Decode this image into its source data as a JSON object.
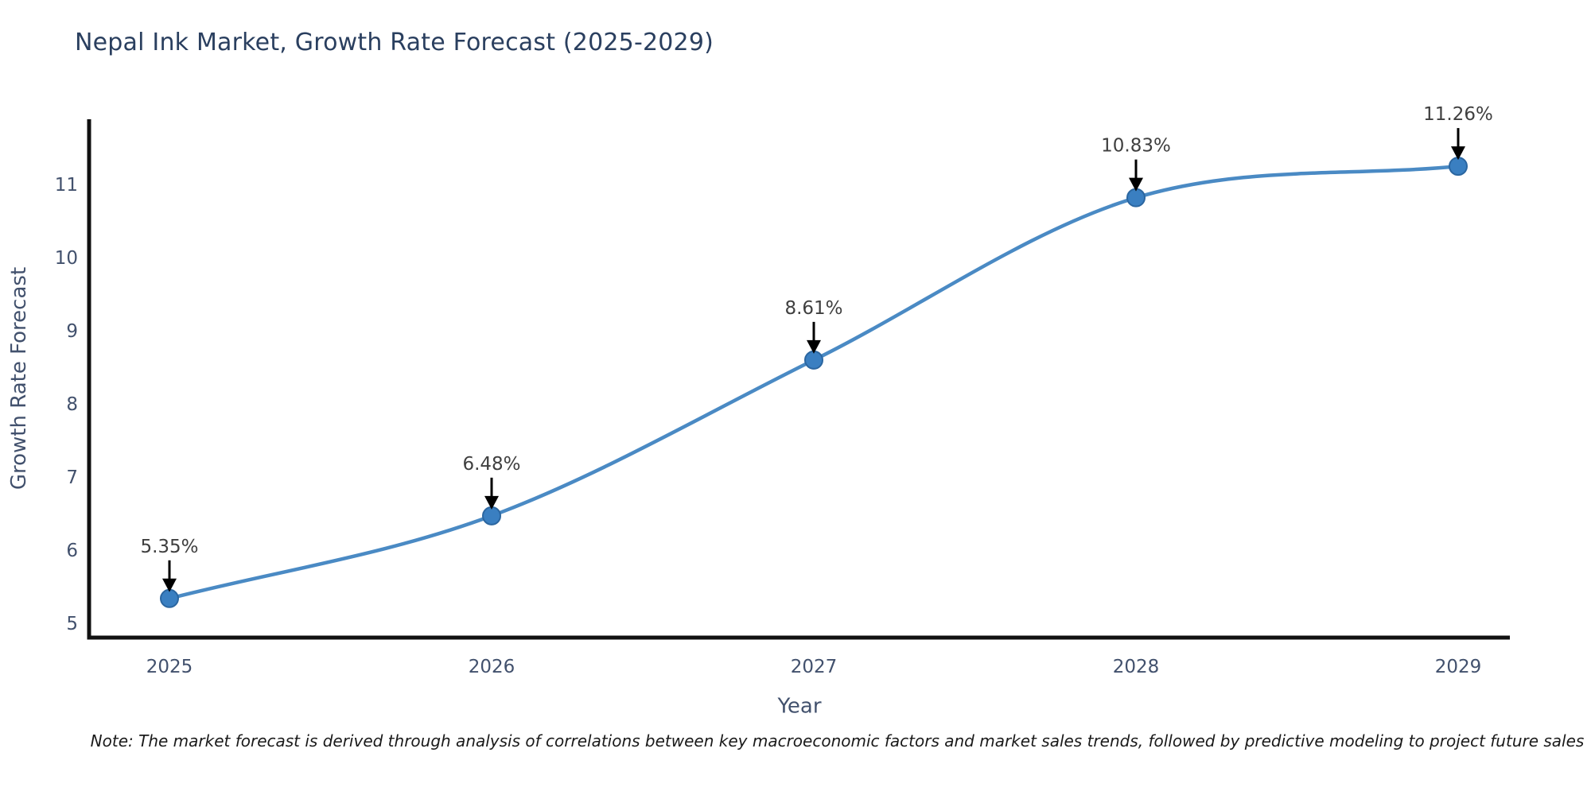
{
  "figure": {
    "title": "Nepal Ink Market, Growth Rate Forecast (2025-2029)",
    "note": "Note: The market forecast is derived through analysis of correlations between key macroeconomic factors and market sales trends, followed by predictive modeling to project future sales"
  },
  "chart_data": {
    "type": "line",
    "title": "Nepal Ink Market, Growth Rate Forecast (2025-2029)",
    "xlabel": "Year",
    "ylabel": "Growth Rate Forecast",
    "x": [
      2025,
      2026,
      2027,
      2028,
      2029
    ],
    "series": [
      {
        "name": "Growth Rate Forecast",
        "values": [
          5.35,
          6.48,
          8.61,
          10.83,
          11.26
        ]
      }
    ],
    "point_labels": [
      "5.35%",
      "6.48%",
      "8.61%",
      "10.83%",
      "11.26%"
    ],
    "xtick_labels": [
      "2025",
      "2026",
      "2027",
      "2028",
      "2029"
    ],
    "yticks": [
      5,
      6,
      7,
      8,
      9,
      10,
      11
    ],
    "ylim": [
      4.8,
      11.9
    ],
    "grid": false,
    "legend": false,
    "line_shape": "spline",
    "annotation_style": "down-arrow-to-point",
    "colors": {
      "line": "#4a8ac4",
      "marker_fill": "#3a7fc1",
      "marker_edge": "#2b66a0",
      "axis_line": "#111111",
      "annotation_text": "#3f3f3f",
      "annotation_arrow": "#000000",
      "tick_text": "#42516d",
      "axis_title_text": "#42516d",
      "title_text": "#2a3f5f",
      "note_text": "#1a1a1a",
      "background": "#ffffff"
    }
  }
}
